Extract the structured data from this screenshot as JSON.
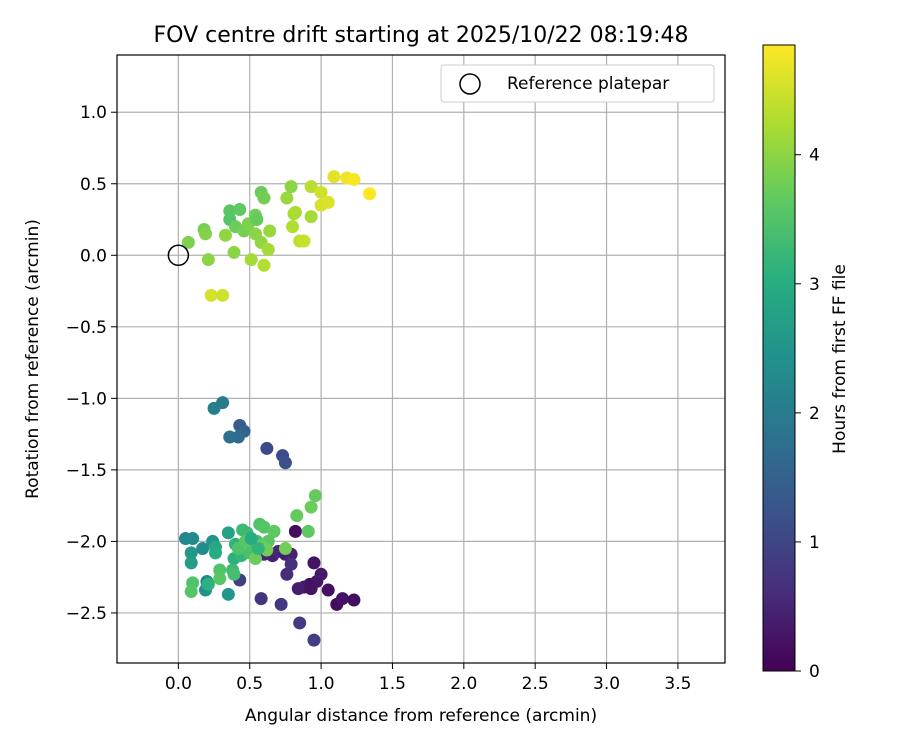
{
  "chart_data": {
    "type": "scatter",
    "title": "FOV centre drift starting at 2025/10/22 08:19:48",
    "xlabel": "Angular distance from reference (arcmin)",
    "ylabel": "Rotation from reference (arcmin)",
    "xlim": [
      -0.43,
      3.83
    ],
    "ylim": [
      -2.85,
      1.4
    ],
    "xticks": [
      0.0,
      0.5,
      1.0,
      1.5,
      2.0,
      2.5,
      3.0,
      3.5
    ],
    "xtick_labels": [
      "0.0",
      "0.5",
      "1.0",
      "1.5",
      "2.0",
      "2.5",
      "3.0",
      "3.5"
    ],
    "yticks": [
      1.0,
      0.5,
      0.0,
      -0.5,
      -1.0,
      -1.5,
      -2.0,
      -2.5
    ],
    "ytick_labels": [
      "1.0",
      "0.5",
      "0.0",
      "−0.5",
      "−1.0",
      "−1.5",
      "−2.0",
      "−2.5"
    ],
    "grid": true,
    "legend": {
      "position": "top-right",
      "label": "Reference platepar"
    },
    "reference_point": {
      "x": 0.0,
      "y": 0.0
    },
    "colorbar": {
      "label": "Hours from first FF file",
      "range": [
        0,
        4.85
      ],
      "ticks": [
        0,
        1,
        2,
        3,
        4
      ],
      "tick_labels": [
        "0",
        "1",
        "2",
        "3",
        "4"
      ],
      "colormap": "viridis"
    },
    "points": [
      {
        "x": 0.82,
        "y": -1.93,
        "t": 0.15
      },
      {
        "x": 0.92,
        "y": -2.3,
        "t": 0.2
      },
      {
        "x": 0.95,
        "y": -2.15,
        "t": 0.25
      },
      {
        "x": 0.97,
        "y": -2.28,
        "t": 0.3
      },
      {
        "x": 1.0,
        "y": -2.23,
        "t": 0.35
      },
      {
        "x": 0.88,
        "y": -2.32,
        "t": 0.3
      },
      {
        "x": 0.93,
        "y": -2.33,
        "t": 0.25
      },
      {
        "x": 1.05,
        "y": -2.34,
        "t": 0.2
      },
      {
        "x": 1.11,
        "y": -2.44,
        "t": 0.15
      },
      {
        "x": 1.15,
        "y": -2.4,
        "t": 0.25
      },
      {
        "x": 1.23,
        "y": -2.41,
        "t": 0.2
      },
      {
        "x": 0.84,
        "y": -2.33,
        "t": 0.4
      },
      {
        "x": 0.66,
        "y": -2.1,
        "t": 0.45
      },
      {
        "x": 0.6,
        "y": -2.09,
        "t": 0.5
      },
      {
        "x": 0.7,
        "y": -2.07,
        "t": 0.55
      },
      {
        "x": 0.75,
        "y": -2.09,
        "t": 0.4
      },
      {
        "x": 0.79,
        "y": -2.09,
        "t": 0.45
      },
      {
        "x": 0.76,
        "y": -2.23,
        "t": 0.6
      },
      {
        "x": 0.79,
        "y": -2.16,
        "t": 0.7
      },
      {
        "x": 0.58,
        "y": -2.4,
        "t": 0.75
      },
      {
        "x": 0.72,
        "y": -2.44,
        "t": 0.8
      },
      {
        "x": 0.85,
        "y": -2.57,
        "t": 0.85
      },
      {
        "x": 0.95,
        "y": -2.69,
        "t": 0.9
      },
      {
        "x": 0.43,
        "y": -2.27,
        "t": 0.9
      },
      {
        "x": 0.62,
        "y": -1.35,
        "t": 1.1
      },
      {
        "x": 0.73,
        "y": -1.4,
        "t": 1.15
      },
      {
        "x": 0.75,
        "y": -1.45,
        "t": 1.2
      },
      {
        "x": 0.43,
        "y": -1.19,
        "t": 1.4
      },
      {
        "x": 0.46,
        "y": -1.23,
        "t": 1.55
      },
      {
        "x": 0.42,
        "y": -1.27,
        "t": 1.7
      },
      {
        "x": 0.36,
        "y": -1.27,
        "t": 1.8
      },
      {
        "x": 0.31,
        "y": -1.03,
        "t": 2.0
      },
      {
        "x": 0.25,
        "y": -1.07,
        "t": 2.1
      },
      {
        "x": 0.05,
        "y": -1.98,
        "t": 2.2
      },
      {
        "x": 0.1,
        "y": -1.98,
        "t": 2.3
      },
      {
        "x": 0.17,
        "y": -2.05,
        "t": 2.35
      },
      {
        "x": 0.24,
        "y": -2.0,
        "t": 2.5
      },
      {
        "x": 0.09,
        "y": -2.08,
        "t": 2.6
      },
      {
        "x": 0.09,
        "y": -2.15,
        "t": 2.7
      },
      {
        "x": 0.2,
        "y": -2.28,
        "t": 2.3
      },
      {
        "x": 0.19,
        "y": -2.34,
        "t": 2.45
      },
      {
        "x": 0.35,
        "y": -2.37,
        "t": 2.55
      },
      {
        "x": 0.26,
        "y": -2.04,
        "t": 2.9
      },
      {
        "x": 0.26,
        "y": -2.08,
        "t": 3.0
      },
      {
        "x": 0.39,
        "y": -2.12,
        "t": 3.1
      },
      {
        "x": 0.35,
        "y": -1.94,
        "t": 2.8
      },
      {
        "x": 0.4,
        "y": -2.02,
        "t": 3.15
      },
      {
        "x": 0.44,
        "y": -2.1,
        "t": 3.2
      },
      {
        "x": 0.48,
        "y": -1.94,
        "t": 3.25
      },
      {
        "x": 0.45,
        "y": -1.92,
        "t": 3.3
      },
      {
        "x": 0.52,
        "y": -2.05,
        "t": 3.35
      },
      {
        "x": 0.55,
        "y": -2.0,
        "t": 3.4
      },
      {
        "x": 0.5,
        "y": -2.08,
        "t": 3.45
      },
      {
        "x": 0.57,
        "y": -1.88,
        "t": 3.5
      },
      {
        "x": 0.6,
        "y": -1.9,
        "t": 3.55
      },
      {
        "x": 0.63,
        "y": -2.0,
        "t": 3.6
      },
      {
        "x": 0.67,
        "y": -1.93,
        "t": 3.65
      },
      {
        "x": 0.58,
        "y": -2.03,
        "t": 3.7
      },
      {
        "x": 0.54,
        "y": -2.12,
        "t": 3.75
      },
      {
        "x": 0.62,
        "y": -2.06,
        "t": 3.8
      },
      {
        "x": 0.75,
        "y": -2.05,
        "t": 3.8
      },
      {
        "x": 0.38,
        "y": -2.2,
        "t": 3.3
      },
      {
        "x": 0.39,
        "y": -2.23,
        "t": 3.4
      },
      {
        "x": 0.29,
        "y": -2.2,
        "t": 3.5
      },
      {
        "x": 0.29,
        "y": -2.26,
        "t": 3.6
      },
      {
        "x": 0.1,
        "y": -2.29,
        "t": 3.5
      },
      {
        "x": 0.09,
        "y": -2.35,
        "t": 3.55
      },
      {
        "x": 0.21,
        "y": -2.3,
        "t": 3.1
      },
      {
        "x": 0.42,
        "y": -2.05,
        "t": 3.5
      },
      {
        "x": 0.47,
        "y": -2.0,
        "t": 3.6
      },
      {
        "x": 0.51,
        "y": -1.98,
        "t": 3.0
      },
      {
        "x": 0.56,
        "y": -2.05,
        "t": 3.15
      },
      {
        "x": 0.83,
        "y": -1.82,
        "t": 3.7
      },
      {
        "x": 0.91,
        "y": -1.93,
        "t": 3.65
      },
      {
        "x": 0.93,
        "y": -1.76,
        "t": 3.75
      },
      {
        "x": 0.96,
        "y": -1.68,
        "t": 3.7
      },
      {
        "x": 0.07,
        "y": 0.09,
        "t": 3.9
      },
      {
        "x": 0.18,
        "y": 0.18,
        "t": 3.85
      },
      {
        "x": 0.19,
        "y": 0.15,
        "t": 3.95
      },
      {
        "x": 0.21,
        "y": -0.03,
        "t": 4.0
      },
      {
        "x": 0.33,
        "y": 0.14,
        "t": 4.05
      },
      {
        "x": 0.36,
        "y": 0.25,
        "t": 3.55
      },
      {
        "x": 0.36,
        "y": 0.31,
        "t": 3.6
      },
      {
        "x": 0.43,
        "y": 0.32,
        "t": 3.65
      },
      {
        "x": 0.4,
        "y": 0.2,
        "t": 3.75
      },
      {
        "x": 0.46,
        "y": 0.17,
        "t": 3.85
      },
      {
        "x": 0.49,
        "y": 0.22,
        "t": 3.9
      },
      {
        "x": 0.54,
        "y": 0.28,
        "t": 3.8
      },
      {
        "x": 0.55,
        "y": 0.25,
        "t": 3.7
      },
      {
        "x": 0.58,
        "y": 0.44,
        "t": 3.75
      },
      {
        "x": 0.6,
        "y": 0.4,
        "t": 3.8
      },
      {
        "x": 0.54,
        "y": 0.15,
        "t": 4.0
      },
      {
        "x": 0.58,
        "y": 0.09,
        "t": 4.05
      },
      {
        "x": 0.64,
        "y": 0.17,
        "t": 4.1
      },
      {
        "x": 0.39,
        "y": 0.02,
        "t": 4.0
      },
      {
        "x": 0.51,
        "y": -0.03,
        "t": 4.2
      },
      {
        "x": 0.6,
        "y": -0.07,
        "t": 4.3
      },
      {
        "x": 0.63,
        "y": 0.04,
        "t": 4.2
      },
      {
        "x": 0.76,
        "y": 0.4,
        "t": 4.1
      },
      {
        "x": 0.79,
        "y": 0.48,
        "t": 4.0
      },
      {
        "x": 0.81,
        "y": 0.29,
        "t": 4.2
      },
      {
        "x": 0.82,
        "y": 0.3,
        "t": 4.25
      },
      {
        "x": 0.8,
        "y": 0.2,
        "t": 4.3
      },
      {
        "x": 0.85,
        "y": 0.1,
        "t": 4.4
      },
      {
        "x": 0.88,
        "y": 0.1,
        "t": 4.45
      },
      {
        "x": 0.93,
        "y": 0.27,
        "t": 4.2
      },
      {
        "x": 0.93,
        "y": 0.48,
        "t": 4.35
      },
      {
        "x": 1.0,
        "y": 0.44,
        "t": 4.5
      },
      {
        "x": 1.0,
        "y": 0.35,
        "t": 4.55
      },
      {
        "x": 1.05,
        "y": 0.37,
        "t": 4.6
      },
      {
        "x": 1.09,
        "y": 0.55,
        "t": 4.65
      },
      {
        "x": 1.18,
        "y": 0.54,
        "t": 4.75
      },
      {
        "x": 1.23,
        "y": 0.53,
        "t": 4.8
      },
      {
        "x": 1.34,
        "y": 0.43,
        "t": 4.85
      },
      {
        "x": 0.23,
        "y": -0.28,
        "t": 4.55
      },
      {
        "x": 0.31,
        "y": -0.28,
        "t": 4.5
      }
    ]
  }
}
